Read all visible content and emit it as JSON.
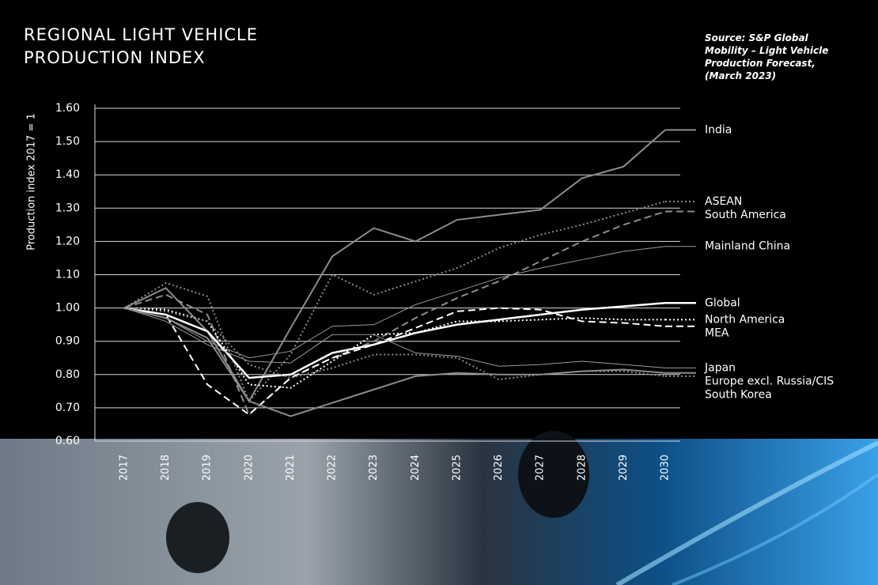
{
  "chart_data": {
    "type": "line",
    "title": "REGIONAL LIGHT VEHICLE PRODUCTION INDEX",
    "source": "Source: S&P Global Mobility – Light Vehicle Production Forecast, (March 2023)",
    "y_label": "Production index 2017 = 1",
    "categories": [
      "2017",
      "2018",
      "2019",
      "2020",
      "2021",
      "2022",
      "2023",
      "2024",
      "2025",
      "2026",
      "2027",
      "2028",
      "2029",
      "2030"
    ],
    "ylim": [
      0.6,
      1.6
    ],
    "yticks": [
      {
        "value": 0.6,
        "label": "0.60"
      },
      {
        "value": 0.7,
        "label": "0.70"
      },
      {
        "value": 0.8,
        "label": "0.80"
      },
      {
        "value": 0.9,
        "label": "0.90"
      },
      {
        "value": 1.0,
        "label": "1.00"
      },
      {
        "value": 1.1,
        "label": "1.10"
      },
      {
        "value": 1.2,
        "label": "1.20"
      },
      {
        "value": 1.3,
        "label": "1.30"
      },
      {
        "value": 1.4,
        "label": "1.40"
      },
      {
        "value": 1.5,
        "label": "1.50"
      },
      {
        "value": 1.6,
        "label": "1.60"
      }
    ],
    "grid": true,
    "series": [
      {
        "name": "India",
        "color": "#8c8c8c",
        "dash": "solid",
        "width": 2,
        "values": [
          1.0,
          1.06,
          0.93,
          0.72,
          0.94,
          1.155,
          1.24,
          1.2,
          1.265,
          1.28,
          1.295,
          1.39,
          1.425,
          1.535
        ]
      },
      {
        "name": "ASEAN",
        "color": "#8c8c8c",
        "dash": "dotted",
        "width": 2,
        "values": [
          1.0,
          1.075,
          1.035,
          0.72,
          0.86,
          1.1,
          1.04,
          1.08,
          1.12,
          1.18,
          1.22,
          1.25,
          1.285,
          1.32
        ]
      },
      {
        "name": "South America",
        "color": "#8c8c8c",
        "dash": "dashed",
        "width": 2,
        "values": [
          1.0,
          1.04,
          0.98,
          0.68,
          0.79,
          0.85,
          0.9,
          0.97,
          1.03,
          1.08,
          1.14,
          1.2,
          1.25,
          1.29
        ]
      },
      {
        "name": "Mainland China",
        "color": "#9a9a9a",
        "dash": "solid",
        "width": 1,
        "values": [
          1.0,
          0.97,
          0.9,
          0.85,
          0.87,
          0.945,
          0.95,
          1.01,
          1.05,
          1.09,
          1.12,
          1.145,
          1.17,
          1.185
        ]
      },
      {
        "name": "Global",
        "color": "#ffffff",
        "dash": "solid",
        "width": 2.5,
        "values": [
          1.0,
          0.98,
          0.93,
          0.79,
          0.8,
          0.865,
          0.89,
          0.925,
          0.95,
          0.965,
          0.98,
          0.995,
          1.005,
          1.015
        ]
      },
      {
        "name": "North America",
        "color": "#ffffff",
        "dash": "dotted",
        "width": 2,
        "values": [
          1.0,
          0.995,
          0.96,
          0.77,
          0.76,
          0.84,
          0.92,
          0.925,
          0.96,
          0.96,
          0.965,
          0.97,
          0.965,
          0.965
        ]
      },
      {
        "name": "MEA",
        "color": "#ffffff",
        "dash": "dashed",
        "width": 2,
        "values": [
          1.0,
          0.98,
          0.77,
          0.68,
          0.79,
          0.85,
          0.89,
          0.94,
          0.99,
          1.0,
          0.995,
          0.96,
          0.955,
          0.945
        ]
      },
      {
        "name": "Japan",
        "color": "#9a9a9a",
        "dash": "solid",
        "width": 1,
        "values": [
          1.0,
          0.96,
          0.89,
          0.84,
          0.835,
          0.92,
          0.92,
          0.865,
          0.855,
          0.825,
          0.83,
          0.84,
          0.83,
          0.82
        ]
      },
      {
        "name": "Europe excl. Russia/CIS",
        "color": "#8c8c8c",
        "dash": "solid",
        "width": 2,
        "values": [
          1.0,
          0.97,
          0.91,
          0.72,
          0.675,
          0.715,
          0.755,
          0.795,
          0.805,
          0.8,
          0.8,
          0.81,
          0.815,
          0.805
        ]
      },
      {
        "name": "South Korea",
        "color": "#8c8c8c",
        "dash": "dotted",
        "width": 2,
        "values": [
          1.0,
          0.99,
          0.96,
          0.83,
          0.79,
          0.82,
          0.86,
          0.86,
          0.85,
          0.785,
          0.8,
          0.81,
          0.81,
          0.795
        ]
      }
    ]
  }
}
